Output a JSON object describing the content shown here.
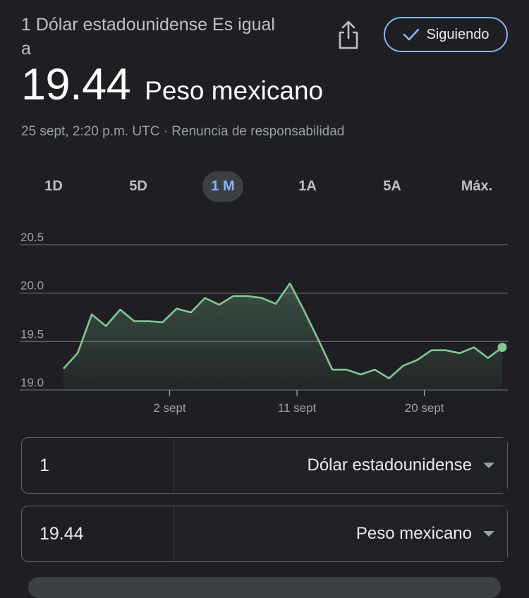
{
  "header": {
    "label": "1 Dólar estadounidense Es igual a",
    "rate": "19.44",
    "target_currency": "Peso mexicano",
    "meta": "25 sept, 2:20 p.m. UTC · Renuncia de responsabilidad",
    "follow_label": "Siguiendo"
  },
  "tabs": [
    {
      "label": "1D"
    },
    {
      "label": "5D"
    },
    {
      "label": "1 M",
      "active": true
    },
    {
      "label": "1A"
    },
    {
      "label": "5A"
    },
    {
      "label": "Máx."
    }
  ],
  "chart_data": {
    "type": "area",
    "ylim": [
      19.0,
      20.5
    ],
    "yticks": [
      "20.5",
      "20.0",
      "19.5",
      "19.0"
    ],
    "xticks": [
      {
        "label": "2 sept",
        "x": 7.5
      },
      {
        "label": "11 sept",
        "x": 16.5
      },
      {
        "label": "20 sept",
        "x": 25.5
      }
    ],
    "x_range": [
      0,
      31
    ],
    "line_color": "#81c995",
    "grid": true,
    "values": [
      {
        "x": 0,
        "y": 19.22
      },
      {
        "x": 1,
        "y": 19.38
      },
      {
        "x": 2,
        "y": 19.78
      },
      {
        "x": 3,
        "y": 19.66
      },
      {
        "x": 4,
        "y": 19.83
      },
      {
        "x": 5,
        "y": 19.71
      },
      {
        "x": 6,
        "y": 19.71
      },
      {
        "x": 7,
        "y": 19.7
      },
      {
        "x": 8,
        "y": 19.84
      },
      {
        "x": 9,
        "y": 19.8
      },
      {
        "x": 10,
        "y": 19.95
      },
      {
        "x": 11,
        "y": 19.88
      },
      {
        "x": 12,
        "y": 19.97
      },
      {
        "x": 13,
        "y": 19.97
      },
      {
        "x": 14,
        "y": 19.95
      },
      {
        "x": 15,
        "y": 19.89
      },
      {
        "x": 16,
        "y": 20.1
      },
      {
        "x": 17,
        "y": 19.82
      },
      {
        "x": 18,
        "y": 19.52
      },
      {
        "x": 19,
        "y": 19.21
      },
      {
        "x": 20,
        "y": 19.21
      },
      {
        "x": 21,
        "y": 19.16
      },
      {
        "x": 22,
        "y": 19.21
      },
      {
        "x": 23,
        "y": 19.12
      },
      {
        "x": 24,
        "y": 19.25
      },
      {
        "x": 25,
        "y": 19.31
      },
      {
        "x": 26,
        "y": 19.41
      },
      {
        "x": 27,
        "y": 19.41
      },
      {
        "x": 28,
        "y": 19.38
      },
      {
        "x": 29,
        "y": 19.44
      },
      {
        "x": 30,
        "y": 19.33
      },
      {
        "x": 31,
        "y": 19.44
      }
    ]
  },
  "converter": {
    "from": {
      "amount": "1",
      "currency": "Dólar estadounidense"
    },
    "to": {
      "amount": "19.44",
      "currency": "Peso mexicano"
    }
  },
  "icons": {
    "share": "share-icon",
    "check": "check-icon",
    "dropdown": "caret-down-icon"
  }
}
